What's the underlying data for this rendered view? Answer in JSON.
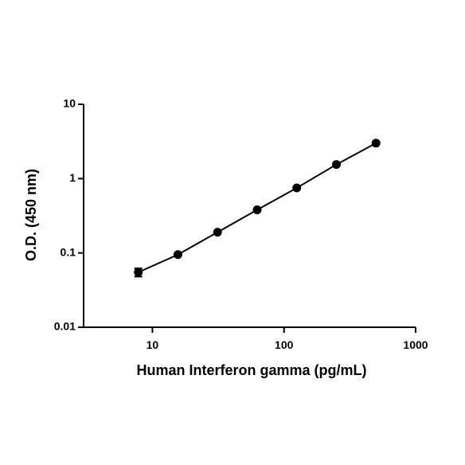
{
  "chart_data": {
    "type": "scatter",
    "xlabel": "Human Interferon gamma (pg/mL)",
    "ylabel": "O.D. (450 nm)",
    "x": [
      7.8125,
      15.625,
      31.25,
      62.5,
      125,
      250,
      500
    ],
    "series": [
      {
        "color": "#000000",
        "values": [
          0.055,
          0.095,
          0.19,
          0.38,
          0.75,
          1.55,
          3.0
        ],
        "errors": [
          0.007,
          null,
          null,
          null,
          null,
          null,
          null
        ]
      }
    ],
    "xlim": [
      3,
      1000
    ],
    "ylim": [
      0.01,
      10
    ],
    "xticks": [
      10,
      100,
      1000
    ],
    "yticks": [
      0.01,
      0.1,
      1,
      10
    ],
    "xscale": "log",
    "yscale": "log",
    "line": true
  }
}
